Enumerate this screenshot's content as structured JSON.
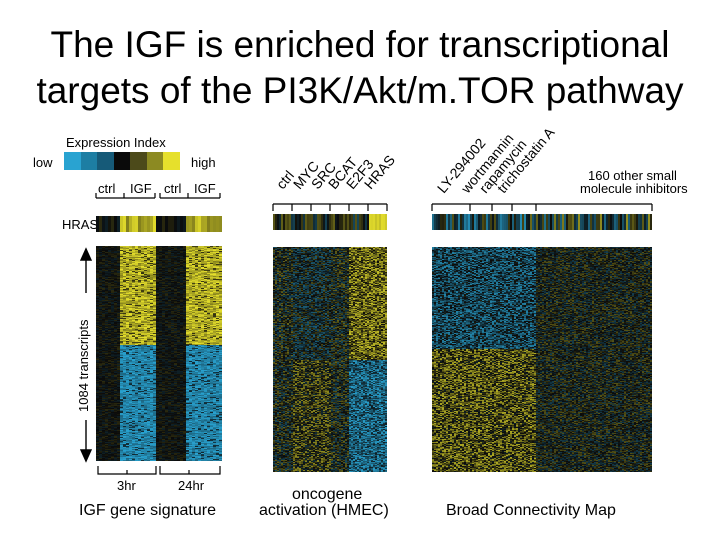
{
  "title": {
    "line1": "The IGF is enriched for transcriptional",
    "line2": "targets of the PI3K/Akt/m.TOR pathway"
  },
  "legend": {
    "title": "Expression Index",
    "low": "low",
    "high": "high",
    "colors": [
      "#29a3d1",
      "#1d7ea3",
      "#165a78",
      "#0a0a0a",
      "#4c4a1a",
      "#8c8a22",
      "#e6e02c"
    ]
  },
  "igf_panel": {
    "col_labels": [
      "ctrl",
      "IGF",
      "ctrl",
      "IGF"
    ],
    "row_label": "HRAS",
    "transcripts_label": "1084 transcripts",
    "time_labels": [
      "3hr",
      "24hr"
    ],
    "caption": "IGF gene signature"
  },
  "oncogene_panel": {
    "col_labels": [
      "ctrl",
      "MYC",
      "SRC",
      "BCAT",
      "E2F3",
      "HRAS"
    ],
    "caption_line1": "oncogene",
    "caption_line2": "activation (HMEC)"
  },
  "cmap_panel": {
    "col_labels": [
      "LY-294002",
      "wortmannin",
      "rapamycin",
      "trichostatin A"
    ],
    "other_label_line1": "160 other small",
    "other_label_line2": "molecule inhibitors",
    "caption": "Broad Connectivity Map"
  },
  "colors": {
    "yellow": "#e6e02c",
    "blue": "#29a3d1",
    "black": "#0a0a0a"
  }
}
